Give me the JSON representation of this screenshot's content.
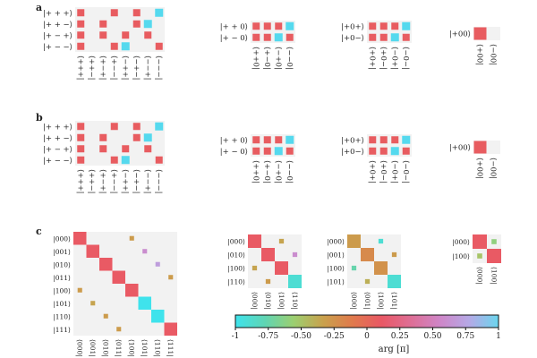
{
  "panel_letters": [
    "a",
    "b",
    "c"
  ],
  "cmap_colors": [
    "#3fe3ec",
    "#5fd5b4",
    "#9ccf70",
    "#c9a14c",
    "#e07a4c",
    "#e95865",
    "#de6e95",
    "#cf86c8",
    "#b5a9e6",
    "#6bd6ee"
  ],
  "colorbar": {
    "ticks": [
      {
        "v": -1,
        "label": "-1"
      },
      {
        "v": -0.75,
        "label": "-0.75"
      },
      {
        "v": -0.5,
        "label": "-0.50"
      },
      {
        "v": -0.25,
        "label": "-0.25"
      },
      {
        "v": 0,
        "label": "0"
      },
      {
        "v": 0.25,
        "label": "0.25"
      },
      {
        "v": 0.5,
        "label": "0.50"
      },
      {
        "v": 0.75,
        "label": "0.75"
      },
      {
        "v": 1,
        "label": "1"
      }
    ],
    "label": "arg [π]",
    "range": [
      -1,
      1
    ]
  },
  "chart_data": [
    {
      "type": "heatmap",
      "panel": "a",
      "rows": [
        "|+ + +⟩",
        "|+ + −⟩",
        "|+ − +⟩",
        "|+ − −⟩"
      ],
      "cols": [
        "+++",
        "++−",
        "+−+",
        "+−−",
        "−++",
        "−+−",
        "−−+",
        "−−−"
      ],
      "cells": [
        [
          0,
          0,
          0
        ],
        [
          0,
          3,
          0
        ],
        [
          0,
          5,
          0
        ],
        [
          0,
          7,
          1
        ],
        [
          1,
          0,
          0
        ],
        [
          1,
          2,
          0
        ],
        [
          1,
          5,
          0
        ],
        [
          1,
          6,
          1
        ],
        [
          2,
          0,
          0
        ],
        [
          2,
          2,
          0
        ],
        [
          2,
          4,
          0
        ],
        [
          2,
          6,
          0
        ],
        [
          3,
          0,
          0
        ],
        [
          3,
          3,
          0
        ],
        [
          3,
          4,
          1
        ],
        [
          3,
          7,
          0
        ]
      ]
    },
    {
      "type": "heatmap",
      "panel": "a",
      "rows": [
        "|+ + 0⟩",
        "|+ − 0⟩"
      ],
      "cols": [
        "++0",
        "+−0",
        "−+0",
        "−−0"
      ],
      "cells": [
        [
          0,
          0,
          0
        ],
        [
          0,
          1,
          0
        ],
        [
          0,
          2,
          0
        ],
        [
          0,
          3,
          1
        ],
        [
          1,
          0,
          0
        ],
        [
          1,
          1,
          0
        ],
        [
          1,
          2,
          1
        ],
        [
          1,
          3,
          0
        ]
      ]
    },
    {
      "type": "heatmap",
      "panel": "a",
      "rows": [
        "|+0+⟩",
        "|+0−⟩"
      ],
      "cols": [
        "+0+",
        "+0−",
        "−0+",
        "−0−"
      ],
      "cells": [
        [
          0,
          0,
          0
        ],
        [
          0,
          1,
          0
        ],
        [
          0,
          2,
          0
        ],
        [
          0,
          3,
          1
        ],
        [
          1,
          0,
          0
        ],
        [
          1,
          1,
          0
        ],
        [
          1,
          2,
          1
        ],
        [
          1,
          3,
          0
        ]
      ]
    },
    {
      "type": "heatmap",
      "panel": "a",
      "rows": [
        "|+00⟩"
      ],
      "cols": [
        "+00",
        "−00"
      ],
      "cells": [
        [
          0,
          0,
          0
        ]
      ]
    },
    {
      "type": "heatmap",
      "panel": "b",
      "rows": [
        "|+ + +⟩",
        "|+ + −⟩",
        "|+ − +⟩",
        "|+ − −⟩"
      ],
      "cols": [
        "+++",
        "++−",
        "+−+",
        "+−−",
        "−++",
        "−+−",
        "−−+",
        "−−−"
      ],
      "cells": [
        [
          0,
          0,
          0
        ],
        [
          0,
          3,
          0
        ],
        [
          0,
          5,
          0
        ],
        [
          0,
          7,
          1
        ],
        [
          1,
          0,
          0
        ],
        [
          1,
          2,
          0
        ],
        [
          1,
          5,
          0
        ],
        [
          1,
          6,
          1
        ],
        [
          2,
          0,
          0
        ],
        [
          2,
          2,
          0
        ],
        [
          2,
          4,
          0
        ],
        [
          2,
          6,
          0
        ],
        [
          3,
          0,
          0
        ],
        [
          3,
          3,
          0
        ],
        [
          3,
          4,
          1
        ],
        [
          3,
          7,
          0
        ]
      ]
    },
    {
      "type": "heatmap",
      "panel": "b",
      "rows": [
        "|+ + 0⟩",
        "|+ − 0⟩"
      ],
      "cols": [
        "++0",
        "+−0",
        "−+0",
        "−−0"
      ],
      "cells": [
        [
          0,
          0,
          0
        ],
        [
          0,
          1,
          0
        ],
        [
          0,
          2,
          0
        ],
        [
          0,
          3,
          1
        ],
        [
          1,
          0,
          0
        ],
        [
          1,
          1,
          0
        ],
        [
          1,
          2,
          1
        ],
        [
          1,
          3,
          0
        ]
      ]
    },
    {
      "type": "heatmap",
      "panel": "b",
      "rows": [
        "|+0+⟩",
        "|+0−⟩"
      ],
      "cols": [
        "+0+",
        "+0−",
        "−0+",
        "−0−"
      ],
      "cells": [
        [
          0,
          0,
          0
        ],
        [
          0,
          1,
          0
        ],
        [
          0,
          2,
          0
        ],
        [
          0,
          3,
          1
        ],
        [
          1,
          0,
          0
        ],
        [
          1,
          1,
          0
        ],
        [
          1,
          2,
          1
        ],
        [
          1,
          3,
          0
        ]
      ]
    },
    {
      "type": "heatmap",
      "panel": "b",
      "rows": [
        "|+00⟩"
      ],
      "cols": [
        "+00",
        "−00"
      ],
      "cells": [
        [
          0,
          0,
          0
        ]
      ]
    },
    {
      "type": "heatmap",
      "panel": "c",
      "rows": [
        "|000⟩",
        "|001⟩",
        "|010⟩",
        "|011⟩",
        "|100⟩",
        "|101⟩",
        "|110⟩",
        "|111⟩"
      ],
      "cols": [
        "000",
        "001",
        "010",
        "011",
        "100",
        "101",
        "110",
        "111"
      ],
      "cells": [
        [
          0,
          0,
          0.1,
          1
        ],
        [
          1,
          1,
          0.1,
          1
        ],
        [
          2,
          2,
          0.1,
          1
        ],
        [
          3,
          3,
          0.1,
          1
        ],
        [
          4,
          4,
          0.1,
          1
        ],
        [
          5,
          5,
          -1,
          1
        ],
        [
          6,
          6,
          -1,
          1
        ],
        [
          7,
          7,
          0.1,
          1
        ],
        [
          0,
          4,
          -0.3,
          0.4
        ],
        [
          1,
          5,
          0.6,
          0.4
        ],
        [
          2,
          6,
          0.7,
          0.4
        ],
        [
          3,
          7,
          -0.3,
          0.4
        ],
        [
          4,
          0,
          -0.3,
          0.4
        ],
        [
          5,
          1,
          -0.35,
          0.4
        ],
        [
          6,
          2,
          -0.3,
          0.4
        ],
        [
          7,
          3,
          -0.3,
          0.4
        ]
      ]
    },
    {
      "type": "heatmap",
      "panel": "c",
      "rows": [
        "|000⟩",
        "|010⟩",
        "|100⟩",
        "|110⟩"
      ],
      "cols": [
        "000",
        "010",
        "100",
        "110"
      ],
      "cells": [
        [
          0,
          0,
          0.1,
          1
        ],
        [
          1,
          1,
          0.1,
          1
        ],
        [
          2,
          2,
          0.1,
          1
        ],
        [
          3,
          3,
          -0.9,
          1
        ],
        [
          0,
          2,
          -0.35,
          0.4
        ],
        [
          1,
          3,
          0.6,
          0.4
        ],
        [
          2,
          0,
          -0.35,
          0.4
        ],
        [
          3,
          1,
          -0.3,
          0.4
        ]
      ]
    },
    {
      "type": "heatmap",
      "panel": "c",
      "rows": [
        "|000⟩",
        "|001⟩",
        "|100⟩",
        "|101⟩"
      ],
      "cols": [
        "000",
        "001",
        "100",
        "101"
      ],
      "cells": [
        [
          0,
          0,
          -0.3,
          1
        ],
        [
          1,
          1,
          -0.2,
          1
        ],
        [
          2,
          2,
          -0.25,
          1
        ],
        [
          3,
          3,
          -0.9,
          1
        ],
        [
          0,
          2,
          -0.9,
          0.4
        ],
        [
          1,
          3,
          -0.3,
          0.4
        ],
        [
          2,
          0,
          -0.75,
          0.4
        ],
        [
          3,
          1,
          -0.4,
          0.4
        ]
      ]
    },
    {
      "type": "heatmap",
      "panel": "c",
      "rows": [
        "|000⟩",
        "|100⟩"
      ],
      "cols": [
        "000",
        "100"
      ],
      "cells": [
        [
          0,
          0,
          0.1,
          1
        ],
        [
          1,
          1,
          0.1,
          1
        ],
        [
          0,
          1,
          -0.6,
          0.4
        ],
        [
          1,
          0,
          -0.5,
          0.4
        ]
      ]
    }
  ]
}
